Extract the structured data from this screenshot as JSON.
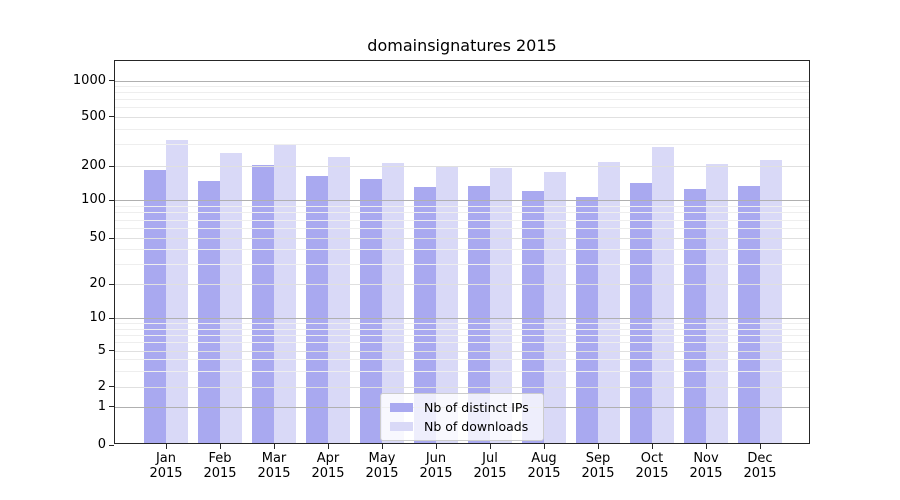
{
  "chart_data": {
    "type": "bar",
    "title": "domainsignatures 2015",
    "year_label": "2015",
    "categories": [
      "Jan",
      "Feb",
      "Mar",
      "Apr",
      "May",
      "Jun",
      "Jul",
      "Aug",
      "Sep",
      "Oct",
      "Nov",
      "Dec"
    ],
    "series": [
      {
        "name": "Nb of distinct IPs",
        "color": "#a9a9f0",
        "values": [
          183,
          148,
          202,
          163,
          155,
          130,
          134,
          119,
          107,
          140,
          124,
          132
        ]
      },
      {
        "name": "Nb of downloads",
        "color": "#d9d9f7",
        "values": [
          325,
          255,
          296,
          235,
          213,
          201,
          193,
          176,
          215,
          286,
          207,
          225
        ]
      }
    ],
    "yscale": "log",
    "y_ticks": [
      0,
      1,
      2,
      5,
      10,
      20,
      50,
      100,
      200,
      500,
      1000
    ],
    "y_minor_ticks": [
      3,
      4,
      6,
      7,
      8,
      9,
      30,
      40,
      60,
      70,
      80,
      90,
      300,
      400,
      600,
      700,
      800,
      900
    ],
    "ylim": [
      0,
      1500
    ],
    "grid": "both",
    "legend_position": "lower center",
    "colors": {
      "bar_distinct_ips": "#a9a9f0",
      "bar_downloads": "#d9d9f7",
      "grid_decade": "#b0b0b0",
      "grid_major": "#e0e0e0",
      "grid_minor": "#eeeeee",
      "axis": "#262626"
    }
  }
}
